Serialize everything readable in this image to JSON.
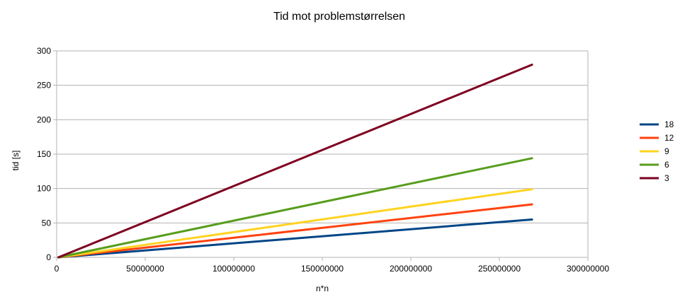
{
  "chart_data": {
    "type": "line",
    "title": "Tid mot problemstørrelsen",
    "xlabel": "n*n",
    "ylabel": "tid [s]",
    "xlim": [
      0,
      300000000
    ],
    "ylim": [
      0,
      300
    ],
    "xticks": [
      0,
      50000000,
      100000000,
      150000000,
      200000000,
      250000000,
      300000000
    ],
    "xtick_labels": [
      "0",
      "50000000",
      "100000000",
      "150000000",
      "200000000",
      "250000000",
      "300000000"
    ],
    "yticks": [
      0,
      50,
      100,
      150,
      200,
      250,
      300
    ],
    "ytick_labels": [
      "0",
      "50",
      "100",
      "150",
      "200",
      "250",
      "300"
    ],
    "grid": "horizontal",
    "legend_position": "right",
    "series": [
      {
        "name": "18",
        "color": "#004586",
        "x": [
          1000000,
          268435456
        ],
        "y": [
          0,
          55
        ]
      },
      {
        "name": "12",
        "color": "#ff420e",
        "x": [
          1000000,
          268435456
        ],
        "y": [
          0,
          77
        ]
      },
      {
        "name": "9",
        "color": "#ffd320",
        "x": [
          1000000,
          268435456
        ],
        "y": [
          0,
          99
        ]
      },
      {
        "name": "6",
        "color": "#579d1c",
        "x": [
          1000000,
          268435456
        ],
        "y": [
          0,
          144
        ]
      },
      {
        "name": "3",
        "color": "#7e0021",
        "x": [
          1000000,
          268435456
        ],
        "y": [
          0,
          280
        ]
      }
    ]
  }
}
